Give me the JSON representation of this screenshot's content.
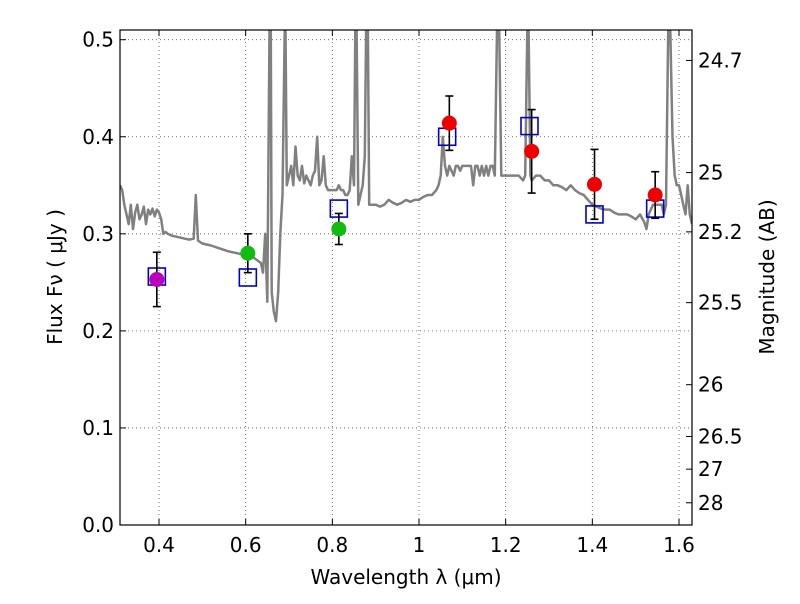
{
  "chart_data": {
    "type": "scatter",
    "title": "",
    "xlabel": "Wavelength  λ (μm)",
    "ylabel": "Flux  Fν  ( μJy )",
    "ylabel_right": "Magnitude (AB)",
    "xlim": [
      0.31,
      1.63
    ],
    "ylim": [
      0.0,
      0.51
    ],
    "grid": true,
    "x_ticks": [
      {
        "value": 0.4,
        "label": "0.4"
      },
      {
        "value": 0.6,
        "label": "0.6"
      },
      {
        "value": 0.8,
        "label": "0.8"
      },
      {
        "value": 1.0,
        "label": "1"
      },
      {
        "value": 1.2,
        "label": "1.2"
      },
      {
        "value": 1.4,
        "label": "1.4"
      },
      {
        "value": 1.6,
        "label": "1.6"
      }
    ],
    "y_ticks": [
      {
        "value": 0.0,
        "label": "0.0"
      },
      {
        "value": 0.1,
        "label": "0.1"
      },
      {
        "value": 0.2,
        "label": "0.2"
      },
      {
        "value": 0.3,
        "label": "0.3"
      },
      {
        "value": 0.4,
        "label": "0.4"
      },
      {
        "value": 0.5,
        "label": "0.5"
      }
    ],
    "mag_ticks": [
      {
        "value": 24.7,
        "label": "24.7"
      },
      {
        "value": 25.0,
        "label": "25"
      },
      {
        "value": 25.2,
        "label": "25.2"
      },
      {
        "value": 25.5,
        "label": "25.5"
      },
      {
        "value": 26.0,
        "label": "26"
      },
      {
        "value": 26.5,
        "label": "26.5"
      },
      {
        "value": 27.0,
        "label": "27"
      },
      {
        "value": 28.0,
        "label": "28"
      }
    ],
    "observed_points": [
      {
        "x": 0.395,
        "y": 0.253,
        "err": 0.028,
        "color": "#bb00bb"
      },
      {
        "x": 0.605,
        "y": 0.28,
        "err": 0.02,
        "color": "#11bb11"
      },
      {
        "x": 0.815,
        "y": 0.305,
        "err": 0.016,
        "color": "#11bb11"
      },
      {
        "x": 1.07,
        "y": 0.414,
        "err": 0.028,
        "color": "#ee0000"
      },
      {
        "x": 1.26,
        "y": 0.385,
        "err": 0.043,
        "color": "#ee0000"
      },
      {
        "x": 1.405,
        "y": 0.351,
        "err": 0.036,
        "color": "#ee0000"
      },
      {
        "x": 1.545,
        "y": 0.34,
        "err": 0.024,
        "color": "#ee0000"
      }
    ],
    "model_points": [
      {
        "x": 0.395,
        "y": 0.256
      },
      {
        "x": 0.605,
        "y": 0.255
      },
      {
        "x": 0.815,
        "y": 0.326
      },
      {
        "x": 1.065,
        "y": 0.4
      },
      {
        "x": 1.255,
        "y": 0.411
      },
      {
        "x": 1.405,
        "y": 0.32
      },
      {
        "x": 1.545,
        "y": 0.326
      }
    ],
    "spectrum": [
      [
        0.31,
        0.35
      ],
      [
        0.315,
        0.345
      ],
      [
        0.32,
        0.33
      ],
      [
        0.325,
        0.32
      ],
      [
        0.33,
        0.31
      ],
      [
        0.335,
        0.33
      ],
      [
        0.34,
        0.305
      ],
      [
        0.345,
        0.322
      ],
      [
        0.35,
        0.33
      ],
      [
        0.355,
        0.315
      ],
      [
        0.36,
        0.32
      ],
      [
        0.365,
        0.328
      ],
      [
        0.37,
        0.31
      ],
      [
        0.375,
        0.325
      ],
      [
        0.38,
        0.32
      ],
      [
        0.385,
        0.326
      ],
      [
        0.39,
        0.318
      ],
      [
        0.395,
        0.325
      ],
      [
        0.4,
        0.322
      ],
      [
        0.405,
        0.315
      ],
      [
        0.41,
        0.3
      ],
      [
        0.415,
        0.302
      ],
      [
        0.42,
        0.3
      ],
      [
        0.43,
        0.298
      ],
      [
        0.44,
        0.297
      ],
      [
        0.45,
        0.296
      ],
      [
        0.46,
        0.295
      ],
      [
        0.47,
        0.294
      ],
      [
        0.48,
        0.295
      ],
      [
        0.485,
        0.34
      ],
      [
        0.49,
        0.293
      ],
      [
        0.5,
        0.29
      ],
      [
        0.52,
        0.288
      ],
      [
        0.54,
        0.285
      ],
      [
        0.56,
        0.282
      ],
      [
        0.58,
        0.28
      ],
      [
        0.6,
        0.278
      ],
      [
        0.62,
        0.275
      ],
      [
        0.635,
        0.27
      ],
      [
        0.64,
        0.26
      ],
      [
        0.645,
        0.3
      ],
      [
        0.65,
        0.23
      ],
      [
        0.655,
        0.51
      ],
      [
        0.658,
        0.51
      ],
      [
        0.66,
        0.24
      ],
      [
        0.665,
        0.22
      ],
      [
        0.67,
        0.21
      ],
      [
        0.675,
        0.24
      ],
      [
        0.68,
        0.3
      ],
      [
        0.685,
        0.34
      ],
      [
        0.69,
        0.51
      ],
      [
        0.692,
        0.51
      ],
      [
        0.695,
        0.35
      ],
      [
        0.7,
        0.36
      ],
      [
        0.705,
        0.37
      ],
      [
        0.71,
        0.35
      ],
      [
        0.715,
        0.39
      ],
      [
        0.72,
        0.36
      ],
      [
        0.725,
        0.355
      ],
      [
        0.73,
        0.37
      ],
      [
        0.735,
        0.352
      ],
      [
        0.74,
        0.36
      ],
      [
        0.745,
        0.355
      ],
      [
        0.75,
        0.35
      ],
      [
        0.755,
        0.36
      ],
      [
        0.76,
        0.365
      ],
      [
        0.765,
        0.4
      ],
      [
        0.77,
        0.35
      ],
      [
        0.775,
        0.355
      ],
      [
        0.78,
        0.38
      ],
      [
        0.785,
        0.35
      ],
      [
        0.79,
        0.345
      ],
      [
        0.8,
        0.345
      ],
      [
        0.81,
        0.345
      ],
      [
        0.815,
        0.35
      ],
      [
        0.82,
        0.345
      ],
      [
        0.825,
        0.345
      ],
      [
        0.83,
        0.34
      ],
      [
        0.835,
        0.34
      ],
      [
        0.84,
        0.345
      ],
      [
        0.845,
        0.38
      ],
      [
        0.85,
        0.35
      ],
      [
        0.853,
        0.51
      ],
      [
        0.856,
        0.51
      ],
      [
        0.86,
        0.33
      ],
      [
        0.865,
        0.34
      ],
      [
        0.87,
        0.35
      ],
      [
        0.875,
        0.38
      ],
      [
        0.878,
        0.51
      ],
      [
        0.882,
        0.51
      ],
      [
        0.885,
        0.33
      ],
      [
        0.89,
        0.33
      ],
      [
        0.9,
        0.33
      ],
      [
        0.91,
        0.328
      ],
      [
        0.92,
        0.33
      ],
      [
        0.93,
        0.335
      ],
      [
        0.94,
        0.332
      ],
      [
        0.95,
        0.33
      ],
      [
        0.96,
        0.332
      ],
      [
        0.97,
        0.335
      ],
      [
        0.98,
        0.333
      ],
      [
        0.99,
        0.335
      ],
      [
        1.0,
        0.335
      ],
      [
        1.01,
        0.338
      ],
      [
        1.02,
        0.34
      ],
      [
        1.03,
        0.34
      ],
      [
        1.04,
        0.345
      ],
      [
        1.045,
        0.35
      ],
      [
        1.05,
        0.36
      ],
      [
        1.055,
        0.4
      ],
      [
        1.06,
        0.37
      ],
      [
        1.065,
        0.36
      ],
      [
        1.07,
        0.37
      ],
      [
        1.08,
        0.36
      ],
      [
        1.085,
        0.37
      ],
      [
        1.09,
        0.37
      ],
      [
        1.095,
        0.365
      ],
      [
        1.1,
        0.37
      ],
      [
        1.11,
        0.37
      ],
      [
        1.12,
        0.37
      ],
      [
        1.125,
        0.35
      ],
      [
        1.13,
        0.37
      ],
      [
        1.135,
        0.37
      ],
      [
        1.14,
        0.36
      ],
      [
        1.145,
        0.37
      ],
      [
        1.15,
        0.36
      ],
      [
        1.155,
        0.37
      ],
      [
        1.16,
        0.36
      ],
      [
        1.165,
        0.37
      ],
      [
        1.17,
        0.37
      ],
      [
        1.175,
        0.36
      ],
      [
        1.18,
        0.51
      ],
      [
        1.185,
        0.51
      ],
      [
        1.19,
        0.36
      ],
      [
        1.2,
        0.36
      ],
      [
        1.21,
        0.36
      ],
      [
        1.22,
        0.36
      ],
      [
        1.23,
        0.36
      ],
      [
        1.24,
        0.355
      ],
      [
        1.245,
        0.36
      ],
      [
        1.25,
        0.51
      ],
      [
        1.253,
        0.51
      ],
      [
        1.257,
        0.36
      ],
      [
        1.26,
        0.355
      ],
      [
        1.27,
        0.36
      ],
      [
        1.28,
        0.36
      ],
      [
        1.29,
        0.355
      ],
      [
        1.3,
        0.355
      ],
      [
        1.31,
        0.35
      ],
      [
        1.32,
        0.35
      ],
      [
        1.33,
        0.348
      ],
      [
        1.34,
        0.345
      ],
      [
        1.35,
        0.35
      ],
      [
        1.36,
        0.345
      ],
      [
        1.37,
        0.342
      ],
      [
        1.38,
        0.34
      ],
      [
        1.39,
        0.335
      ],
      [
        1.4,
        0.33
      ],
      [
        1.41,
        0.328
      ],
      [
        1.42,
        0.326
      ],
      [
        1.43,
        0.325
      ],
      [
        1.44,
        0.325
      ],
      [
        1.45,
        0.322
      ],
      [
        1.46,
        0.32
      ],
      [
        1.47,
        0.32
      ],
      [
        1.48,
        0.32
      ],
      [
        1.49,
        0.318
      ],
      [
        1.5,
        0.315
      ],
      [
        1.51,
        0.32
      ],
      [
        1.52,
        0.312
      ],
      [
        1.525,
        0.305
      ],
      [
        1.53,
        0.32
      ],
      [
        1.54,
        0.33
      ],
      [
        1.55,
        0.33
      ],
      [
        1.56,
        0.33
      ],
      [
        1.565,
        0.32
      ],
      [
        1.57,
        0.33
      ],
      [
        1.575,
        0.51
      ],
      [
        1.58,
        0.51
      ],
      [
        1.585,
        0.4
      ],
      [
        1.59,
        0.36
      ],
      [
        1.595,
        0.35
      ],
      [
        1.6,
        0.35
      ],
      [
        1.605,
        0.34
      ],
      [
        1.61,
        0.33
      ],
      [
        1.615,
        0.32
      ],
      [
        1.62,
        0.35
      ],
      [
        1.625,
        0.32
      ],
      [
        1.63,
        0.31
      ]
    ],
    "colors": {
      "spectrum": "#808080",
      "model_box": "#0000cc",
      "errorbar": "#000000",
      "grid": "#555555"
    }
  }
}
